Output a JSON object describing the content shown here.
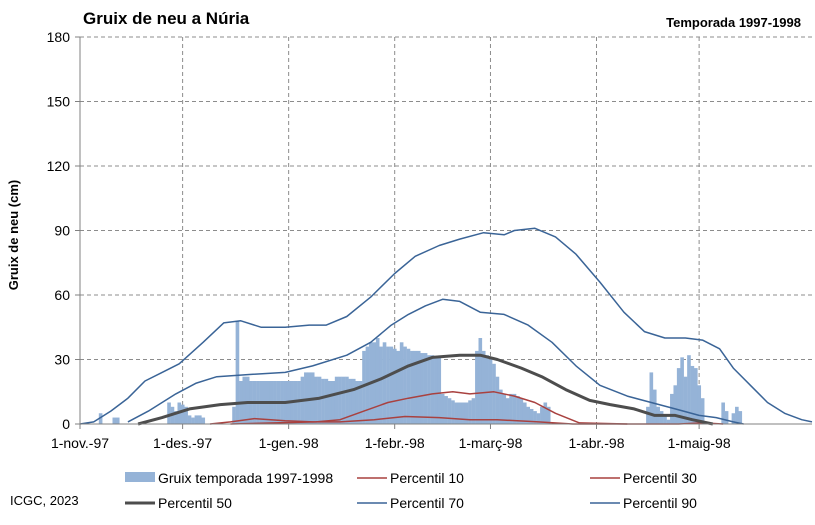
{
  "credit": "ICGC, 2023",
  "chart_data": {
    "type": "area",
    "title": "Gruix de neu a Núria",
    "subtitle": "Temporada 1997-1998",
    "ylabel": "Gruix de neu (cm)",
    "xlabel": "",
    "x_range": [
      "1997-11-01",
      "1998-06-03"
    ],
    "ylim": [
      0,
      180
    ],
    "yticks": [
      0,
      30,
      60,
      90,
      120,
      150,
      180
    ],
    "xticks": [
      {
        "date": "1997-11-01",
        "label": "1-nov.-97"
      },
      {
        "date": "1997-12-01",
        "label": "1-des.-97"
      },
      {
        "date": "1998-01-01",
        "label": "1-gen.-98"
      },
      {
        "date": "1998-02-01",
        "label": "1-febr.-98"
      },
      {
        "date": "1998-03-01",
        "label": "1-març-98"
      },
      {
        "date": "1998-04-01",
        "label": "1-abr.-98"
      },
      {
        "date": "1998-05-01",
        "label": "1-maig-98"
      }
    ],
    "grid": true,
    "legend_position": "bottom",
    "series": [
      {
        "name": "Gruix temporada 1997-1998",
        "kind": "bar",
        "color": "#95b3d7",
        "points": [
          [
            "1997-11-07",
            5
          ],
          [
            "1997-11-11",
            3
          ],
          [
            "1997-11-12",
            3
          ],
          [
            "1997-11-27",
            10
          ],
          [
            "1997-11-28",
            8
          ],
          [
            "1997-11-29",
            6
          ],
          [
            "1997-11-30",
            10
          ],
          [
            "1997-12-01",
            9
          ],
          [
            "1997-12-02",
            8
          ],
          [
            "1997-12-03",
            4
          ],
          [
            "1997-12-04",
            3
          ],
          [
            "1997-12-05",
            4
          ],
          [
            "1997-12-06",
            4
          ],
          [
            "1997-12-07",
            3
          ],
          [
            "1997-12-16",
            8
          ],
          [
            "1997-12-17",
            48
          ],
          [
            "1997-12-18",
            20
          ],
          [
            "1997-12-19",
            22
          ],
          [
            "1997-12-20",
            22
          ],
          [
            "1997-12-21",
            20
          ],
          [
            "1997-12-22",
            20
          ],
          [
            "1997-12-23",
            20
          ],
          [
            "1997-12-24",
            20
          ],
          [
            "1997-12-25",
            20
          ],
          [
            "1997-12-26",
            20
          ],
          [
            "1997-12-27",
            20
          ],
          [
            "1997-12-28",
            20
          ],
          [
            "1997-12-29",
            20
          ],
          [
            "1997-12-30",
            20
          ],
          [
            "1997-12-31",
            20
          ],
          [
            "1998-01-01",
            20
          ],
          [
            "1998-01-02",
            20
          ],
          [
            "1998-01-03",
            20
          ],
          [
            "1998-01-04",
            20
          ],
          [
            "1998-01-05",
            22
          ],
          [
            "1998-01-06",
            24
          ],
          [
            "1998-01-07",
            24
          ],
          [
            "1998-01-08",
            24
          ],
          [
            "1998-01-09",
            22
          ],
          [
            "1998-01-10",
            22
          ],
          [
            "1998-01-11",
            21
          ],
          [
            "1998-01-12",
            21
          ],
          [
            "1998-01-13",
            20
          ],
          [
            "1998-01-14",
            20
          ],
          [
            "1998-01-15",
            22
          ],
          [
            "1998-01-16",
            22
          ],
          [
            "1998-01-17",
            22
          ],
          [
            "1998-01-18",
            22
          ],
          [
            "1998-01-19",
            21
          ],
          [
            "1998-01-20",
            21
          ],
          [
            "1998-01-21",
            20
          ],
          [
            "1998-01-22",
            20
          ],
          [
            "1998-01-23",
            34
          ],
          [
            "1998-01-24",
            36
          ],
          [
            "1998-01-25",
            38
          ],
          [
            "1998-01-26",
            38
          ],
          [
            "1998-01-27",
            40
          ],
          [
            "1998-01-28",
            36
          ],
          [
            "1998-01-29",
            38
          ],
          [
            "1998-01-30",
            36
          ],
          [
            "1998-01-31",
            36
          ],
          [
            "1998-02-01",
            35
          ],
          [
            "1998-02-02",
            34
          ],
          [
            "1998-02-03",
            38
          ],
          [
            "1998-02-04",
            36
          ],
          [
            "1998-02-05",
            35
          ],
          [
            "1998-02-06",
            34
          ],
          [
            "1998-02-07",
            34
          ],
          [
            "1998-02-08",
            34
          ],
          [
            "1998-02-09",
            33
          ],
          [
            "1998-02-10",
            33
          ],
          [
            "1998-02-11",
            32
          ],
          [
            "1998-02-12",
            32
          ],
          [
            "1998-02-13",
            31
          ],
          [
            "1998-02-14",
            31
          ],
          [
            "1998-02-15",
            14
          ],
          [
            "1998-02-16",
            13
          ],
          [
            "1998-02-17",
            12
          ],
          [
            "1998-02-18",
            11
          ],
          [
            "1998-02-19",
            10
          ],
          [
            "1998-02-20",
            10
          ],
          [
            "1998-02-21",
            10
          ],
          [
            "1998-02-22",
            10
          ],
          [
            "1998-02-23",
            11
          ],
          [
            "1998-02-24",
            12
          ],
          [
            "1998-02-25",
            34
          ],
          [
            "1998-02-26",
            40
          ],
          [
            "1998-02-27",
            34
          ],
          [
            "1998-02-28",
            32
          ],
          [
            "1998-03-01",
            30
          ],
          [
            "1998-03-02",
            28
          ],
          [
            "1998-03-03",
            22
          ],
          [
            "1998-03-04",
            16
          ],
          [
            "1998-03-05",
            14
          ],
          [
            "1998-03-06",
            12
          ],
          [
            "1998-03-07",
            14
          ],
          [
            "1998-03-08",
            14
          ],
          [
            "1998-03-09",
            13
          ],
          [
            "1998-03-10",
            12
          ],
          [
            "1998-03-11",
            10
          ],
          [
            "1998-03-12",
            8
          ],
          [
            "1998-03-13",
            7
          ],
          [
            "1998-03-14",
            6
          ],
          [
            "1998-03-15",
            5
          ],
          [
            "1998-03-16",
            8
          ],
          [
            "1998-03-17",
            10
          ],
          [
            "1998-03-18",
            8
          ],
          [
            "1998-04-16",
            8
          ],
          [
            "1998-04-17",
            24
          ],
          [
            "1998-04-18",
            16
          ],
          [
            "1998-04-19",
            8
          ],
          [
            "1998-04-20",
            6
          ],
          [
            "1998-04-21",
            4
          ],
          [
            "1998-04-22",
            2
          ],
          [
            "1998-04-23",
            14
          ],
          [
            "1998-04-24",
            18
          ],
          [
            "1998-04-25",
            26
          ],
          [
            "1998-04-26",
            31
          ],
          [
            "1998-04-27",
            22
          ],
          [
            "1998-04-28",
            32
          ],
          [
            "1998-04-29",
            27
          ],
          [
            "1998-04-30",
            26
          ],
          [
            "1998-05-01",
            18
          ],
          [
            "1998-05-02",
            12
          ],
          [
            "1998-05-08",
            10
          ],
          [
            "1998-05-09",
            6
          ],
          [
            "1998-05-11",
            5
          ],
          [
            "1998-05-12",
            8
          ],
          [
            "1998-05-13",
            6
          ]
        ]
      },
      {
        "name": "Percentil 10",
        "kind": "line",
        "color": "#a9413f",
        "width": 1.5,
        "points": [
          [
            "1997-12-09",
            0
          ],
          [
            "1997-12-15",
            1
          ],
          [
            "1997-12-22",
            2.5
          ],
          [
            "1997-12-31",
            1.5
          ],
          [
            "1998-01-08",
            1
          ],
          [
            "1998-01-16",
            1
          ],
          [
            "1998-01-26",
            2
          ],
          [
            "1998-02-04",
            3.5
          ],
          [
            "1998-02-14",
            3
          ],
          [
            "1998-02-23",
            2
          ],
          [
            "1998-03-03",
            2
          ],
          [
            "1998-03-15",
            1
          ],
          [
            "1998-03-25",
            0
          ],
          [
            "1998-04-10",
            0
          ]
        ]
      },
      {
        "name": "Percentil 30",
        "kind": "line",
        "color": "#a9413f",
        "width": 1.5,
        "points": [
          [
            "1997-12-15",
            0
          ],
          [
            "1997-12-28",
            0.5
          ],
          [
            "1998-01-09",
            1
          ],
          [
            "1998-01-16",
            2
          ],
          [
            "1998-01-23",
            6
          ],
          [
            "1998-01-30",
            10
          ],
          [
            "1998-02-05",
            12
          ],
          [
            "1998-02-12",
            14
          ],
          [
            "1998-02-18",
            15
          ],
          [
            "1998-02-23",
            14
          ],
          [
            "1998-03-02",
            15
          ],
          [
            "1998-03-08",
            13
          ],
          [
            "1998-03-14",
            10
          ],
          [
            "1998-03-20",
            5
          ],
          [
            "1998-03-27",
            0.5
          ],
          [
            "1998-04-10",
            0
          ],
          [
            "1998-04-25",
            0
          ],
          [
            "1998-05-02",
            0.5
          ],
          [
            "1998-05-08",
            0
          ]
        ]
      },
      {
        "name": "Percentil 50",
        "kind": "line",
        "color": "#4d4d4d",
        "width": 3,
        "points": [
          [
            "1997-11-18",
            0
          ],
          [
            "1997-11-25",
            3
          ],
          [
            "1997-12-03",
            7
          ],
          [
            "1997-12-12",
            9
          ],
          [
            "1997-12-20",
            10
          ],
          [
            "1997-12-31",
            10
          ],
          [
            "1998-01-10",
            12
          ],
          [
            "1998-01-20",
            16
          ],
          [
            "1998-01-28",
            21
          ],
          [
            "1998-02-05",
            27
          ],
          [
            "1998-02-12",
            31
          ],
          [
            "1998-02-20",
            32
          ],
          [
            "1998-02-26",
            32
          ],
          [
            "1998-03-03",
            30
          ],
          [
            "1998-03-10",
            26
          ],
          [
            "1998-03-16",
            22
          ],
          [
            "1998-03-23",
            16
          ],
          [
            "1998-03-30",
            11
          ],
          [
            "1998-04-05",
            9
          ],
          [
            "1998-04-12",
            7
          ],
          [
            "1998-04-18",
            4
          ],
          [
            "1998-04-24",
            4
          ],
          [
            "1998-04-29",
            2
          ],
          [
            "1998-05-05",
            0
          ]
        ]
      },
      {
        "name": "Percentil 70",
        "kind": "line",
        "color": "#3a6497",
        "width": 1.5,
        "points": [
          [
            "1997-11-15",
            1
          ],
          [
            "1997-11-21",
            6
          ],
          [
            "1997-11-29",
            14
          ],
          [
            "1997-12-05",
            19
          ],
          [
            "1997-12-11",
            22
          ],
          [
            "1997-12-20",
            23
          ],
          [
            "1997-12-31",
            24
          ],
          [
            "1998-01-08",
            27
          ],
          [
            "1998-01-18",
            32
          ],
          [
            "1998-01-25",
            38
          ],
          [
            "1998-01-31",
            46
          ],
          [
            "1998-02-05",
            51
          ],
          [
            "1998-02-10",
            55
          ],
          [
            "1998-02-15",
            58
          ],
          [
            "1998-02-20",
            57
          ],
          [
            "1998-02-26",
            52
          ],
          [
            "1998-03-05",
            51
          ],
          [
            "1998-03-12",
            46
          ],
          [
            "1998-03-19",
            38
          ],
          [
            "1998-03-26",
            27
          ],
          [
            "1998-04-02",
            18
          ],
          [
            "1998-04-10",
            13
          ],
          [
            "1998-04-17",
            10
          ],
          [
            "1998-04-24",
            7
          ],
          [
            "1998-05-01",
            4
          ],
          [
            "1998-05-06",
            3
          ],
          [
            "1998-05-11",
            1
          ],
          [
            "1998-05-14",
            0
          ]
        ]
      },
      {
        "name": "Percentil 90",
        "kind": "line",
        "color": "#3a6497",
        "width": 1.5,
        "points": [
          [
            "1997-11-01",
            0
          ],
          [
            "1997-11-05",
            1
          ],
          [
            "1997-11-10",
            6
          ],
          [
            "1997-11-15",
            12
          ],
          [
            "1997-11-20",
            20
          ],
          [
            "1997-11-25",
            24
          ],
          [
            "1997-11-30",
            28
          ],
          [
            "1997-12-07",
            38
          ],
          [
            "1997-12-13",
            47
          ],
          [
            "1997-12-18",
            48
          ],
          [
            "1997-12-24",
            45
          ],
          [
            "1997-12-31",
            45
          ],
          [
            "1998-01-07",
            46
          ],
          [
            "1998-01-12",
            46
          ],
          [
            "1998-01-18",
            50
          ],
          [
            "1998-01-25",
            59
          ],
          [
            "1998-02-01",
            70
          ],
          [
            "1998-02-07",
            78
          ],
          [
            "1998-02-14",
            83
          ],
          [
            "1998-02-20",
            86
          ],
          [
            "1998-02-27",
            89
          ],
          [
            "1998-03-05",
            88
          ],
          [
            "1998-03-08",
            90
          ],
          [
            "1998-03-14",
            91
          ],
          [
            "1998-03-20",
            87
          ],
          [
            "1998-03-26",
            79
          ],
          [
            "1998-04-02",
            66
          ],
          [
            "1998-04-09",
            52
          ],
          [
            "1998-04-15",
            43
          ],
          [
            "1998-04-21",
            40
          ],
          [
            "1998-04-27",
            40
          ],
          [
            "1998-05-02",
            39
          ],
          [
            "1998-05-07",
            35
          ],
          [
            "1998-05-11",
            26
          ],
          [
            "1998-05-16",
            18
          ],
          [
            "1998-05-21",
            10
          ],
          [
            "1998-05-26",
            5
          ],
          [
            "1998-05-31",
            2
          ],
          [
            "1998-06-03",
            1
          ]
        ]
      }
    ]
  }
}
